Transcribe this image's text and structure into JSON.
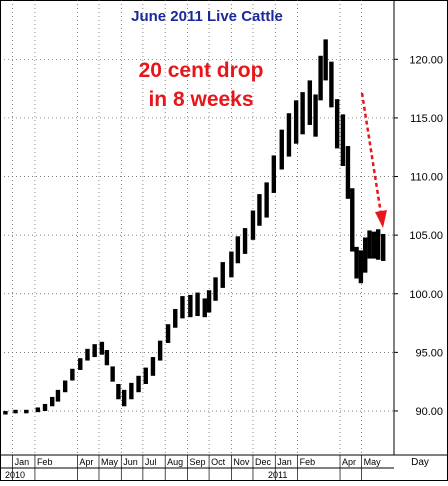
{
  "chart_data": {
    "type": "bar",
    "title": "June 2011 Live Cattle",
    "annotation": {
      "lines": [
        "20 cent drop",
        "in 8 weeks"
      ],
      "color": "#e8161b"
    },
    "arrow_color": "#e8161b",
    "title_color": "#1a2a9a",
    "bar_color": "#000000",
    "grid": true,
    "grid_style": "dotted",
    "ylim": [
      86.5,
      122.5
    ],
    "y_ticks": [
      "90.00",
      "95.00",
      "100.00",
      "105.00",
      "110.00",
      "115.00",
      "120.00"
    ],
    "y_tick_values": [
      90,
      95,
      100,
      105,
      110,
      115,
      120
    ],
    "x_tick_labels": [
      "Jan",
      "Feb",
      "Apr",
      "May",
      "Jun",
      "Jul",
      "Aug",
      "Sep",
      "Oct",
      "Nov",
      "Dec",
      "Jan",
      "Feb",
      "Apr",
      "May"
    ],
    "x_tick_dates": [
      "2010-01-01",
      "2010-02-01",
      "2010-04-01",
      "2010-05-01",
      "2010-06-01",
      "2010-07-01",
      "2010-08-01",
      "2010-09-01",
      "2010-10-01",
      "2010-11-01",
      "2010-12-01",
      "2011-01-01",
      "2011-02-01",
      "2011-04-01",
      "2011-05-01"
    ],
    "year_labels": [
      "2010",
      "2011"
    ],
    "x_unit_label": "Day",
    "xlim": [
      "2009-12-20",
      "2011-06-15"
    ],
    "series": [
      {
        "x": [
          "2009-12-22",
          "2010-01-05",
          "2010-01-20",
          "2010-02-05",
          "2010-02-15",
          "2010-02-25",
          "2010-03-05",
          "2010-03-15",
          "2010-03-25",
          "2010-04-05",
          "2010-04-15",
          "2010-04-25",
          "2010-05-05",
          "2010-05-12",
          "2010-05-20",
          "2010-05-28",
          "2010-06-05",
          "2010-06-15",
          "2010-06-25",
          "2010-07-05",
          "2010-07-15",
          "2010-07-25",
          "2010-08-05",
          "2010-08-15",
          "2010-08-25",
          "2010-09-05",
          "2010-09-15",
          "2010-09-25",
          "2010-10-01",
          "2010-10-10",
          "2010-10-20",
          "2010-11-01",
          "2010-11-10",
          "2010-11-20",
          "2010-12-01",
          "2010-12-10",
          "2010-12-20",
          "2010-12-30",
          "2011-01-10",
          "2011-01-20",
          "2011-01-30",
          "2011-02-08",
          "2011-02-18",
          "2011-02-26",
          "2011-03-05",
          "2011-03-12",
          "2011-03-20",
          "2011-03-28",
          "2011-04-05",
          "2011-04-12",
          "2011-04-18",
          "2011-04-24",
          "2011-04-30",
          "2011-05-06",
          "2011-05-12",
          "2011-05-18",
          "2011-05-24",
          "2011-05-31"
        ],
        "low": [
          89.7,
          89.8,
          89.8,
          89.9,
          90.0,
          90.4,
          90.8,
          91.6,
          92.6,
          93.5,
          94.3,
          94.6,
          94.8,
          93.9,
          92.5,
          91.0,
          90.4,
          91.0,
          91.6,
          92.3,
          93.0,
          94.3,
          95.8,
          97.1,
          97.9,
          98.0,
          98.1,
          98.0,
          98.4,
          99.4,
          100.5,
          101.4,
          102.6,
          103.4,
          104.6,
          105.8,
          106.5,
          108.6,
          110.6,
          111.7,
          112.8,
          113.6,
          114.4,
          113.4,
          116.5,
          118.2,
          115.9,
          112.4,
          110.9,
          108.1,
          103.6,
          101.3,
          100.9,
          101.8,
          103.0,
          103.0,
          102.9,
          102.8
        ],
        "high": [
          90.0,
          90.1,
          90.1,
          90.3,
          90.6,
          91.2,
          91.8,
          92.6,
          93.6,
          94.5,
          95.3,
          95.7,
          95.9,
          95.2,
          93.8,
          92.3,
          91.8,
          92.4,
          93.0,
          93.7,
          94.6,
          96.0,
          97.4,
          98.7,
          99.8,
          99.9,
          100.1,
          99.6,
          100.3,
          101.4,
          102.7,
          103.6,
          104.9,
          105.6,
          107.1,
          108.5,
          109.5,
          111.8,
          114.0,
          115.4,
          116.5,
          117.2,
          118.2,
          117.0,
          120.3,
          121.7,
          119.8,
          116.6,
          115.3,
          112.6,
          109.0,
          104.0,
          103.7,
          104.8,
          105.4,
          105.3,
          105.5,
          105.1
        ]
      }
    ]
  }
}
